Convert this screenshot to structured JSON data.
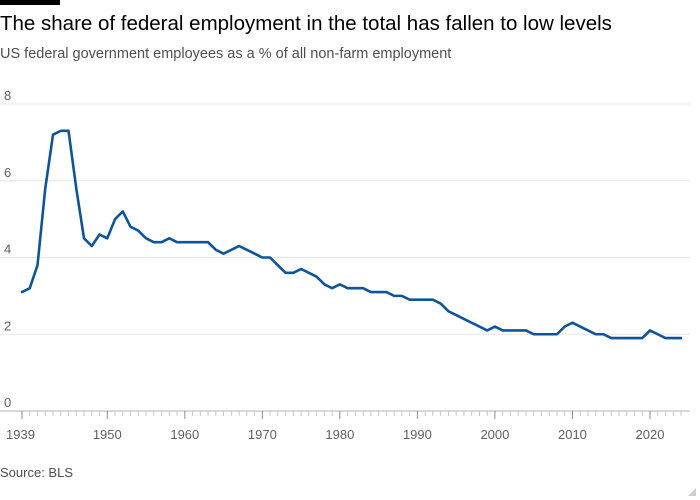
{
  "chart_data": {
    "type": "line",
    "title": "The share of federal employment in the total has fallen to low levels",
    "subtitle": "US federal government employees as a % of all non-farm employment",
    "source": "Source: BLS",
    "xlabel": "",
    "ylabel": "",
    "xlim": [
      1939,
      2024
    ],
    "ylim": [
      0,
      8
    ],
    "y_ticks": [
      0,
      2,
      4,
      6,
      8
    ],
    "x_ticks": [
      1939,
      1950,
      1960,
      1970,
      1980,
      1990,
      2000,
      2010,
      2020
    ],
    "grid": "horizontal",
    "line_color": "#0f5499",
    "series": [
      {
        "x": [
          1939,
          1940,
          1941,
          1942,
          1943,
          1944,
          1945,
          1946,
          1947,
          1948,
          1949,
          1950,
          1951,
          1952,
          1953,
          1954,
          1955,
          1956,
          1957,
          1958,
          1959,
          1960,
          1961,
          1962,
          1963,
          1964,
          1965,
          1966,
          1967,
          1968,
          1969,
          1970,
          1971,
          1972,
          1973,
          1974,
          1975,
          1976,
          1977,
          1978,
          1979,
          1980,
          1981,
          1982,
          1983,
          1984,
          1985,
          1986,
          1987,
          1988,
          1989,
          1990,
          1991,
          1992,
          1993,
          1994,
          1995,
          1996,
          1997,
          1998,
          1999,
          2000,
          2001,
          2002,
          2003,
          2004,
          2005,
          2006,
          2007,
          2008,
          2009,
          2010,
          2011,
          2012,
          2013,
          2014,
          2015,
          2016,
          2017,
          2018,
          2019,
          2020,
          2021,
          2022,
          2023,
          2024
        ],
        "values": [
          3.1,
          3.2,
          3.8,
          5.8,
          7.2,
          7.3,
          7.3,
          5.8,
          4.5,
          4.3,
          4.6,
          4.5,
          5.0,
          5.2,
          4.8,
          4.7,
          4.5,
          4.4,
          4.4,
          4.5,
          4.4,
          4.4,
          4.4,
          4.4,
          4.4,
          4.2,
          4.1,
          4.2,
          4.3,
          4.2,
          4.1,
          4.0,
          4.0,
          3.8,
          3.6,
          3.6,
          3.7,
          3.6,
          3.5,
          3.3,
          3.2,
          3.3,
          3.2,
          3.2,
          3.2,
          3.1,
          3.1,
          3.1,
          3.0,
          3.0,
          2.9,
          2.9,
          2.9,
          2.9,
          2.8,
          2.6,
          2.5,
          2.4,
          2.3,
          2.2,
          2.1,
          2.2,
          2.1,
          2.1,
          2.1,
          2.1,
          2.0,
          2.0,
          2.0,
          2.0,
          2.2,
          2.3,
          2.2,
          2.1,
          2.0,
          2.0,
          1.9,
          1.9,
          1.9,
          1.9,
          1.9,
          2.1,
          2.0,
          1.9,
          1.9,
          1.9
        ]
      }
    ]
  }
}
